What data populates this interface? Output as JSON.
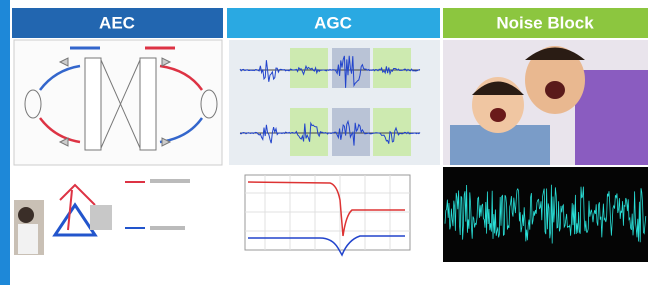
{
  "panels": [
    {
      "title": "AEC"
    },
    {
      "title": "AGC"
    },
    {
      "title": "Noise Block"
    }
  ]
}
